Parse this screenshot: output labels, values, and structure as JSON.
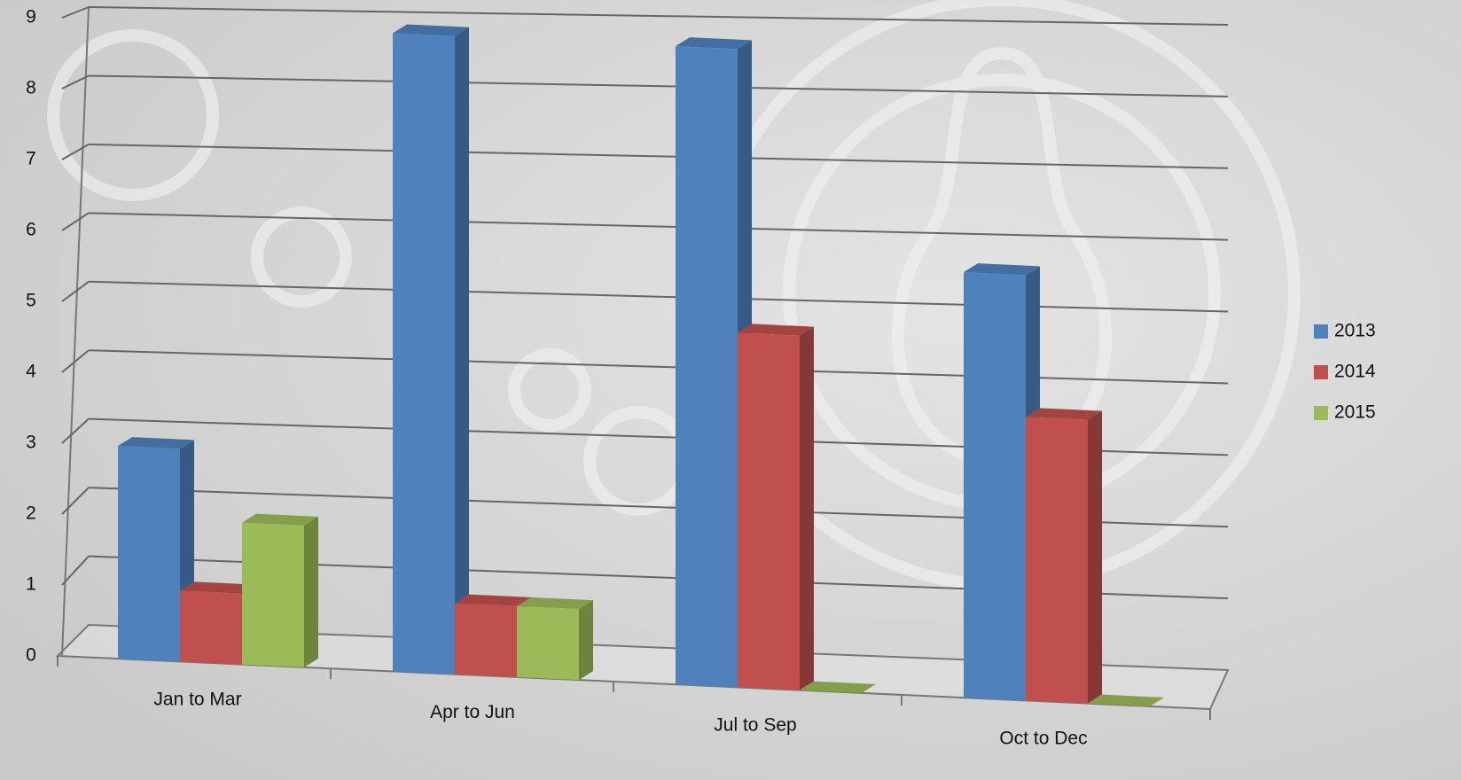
{
  "chart_data": {
    "type": "bar3d",
    "categories": [
      "Jan to Mar",
      "Apr to Jun",
      "Jul to Sep",
      "Oct to Dec"
    ],
    "series": [
      {
        "name": "2013",
        "color": "#4f81bd",
        "values": [
          3,
          9,
          9,
          6
        ]
      },
      {
        "name": "2014",
        "color": "#c0504d",
        "values": [
          1,
          1,
          5,
          4
        ]
      },
      {
        "name": "2015",
        "color": "#9bbb59",
        "values": [
          2,
          1,
          0,
          0
        ]
      }
    ],
    "ylim": [
      0,
      9
    ],
    "yticks": [
      0,
      1,
      2,
      3,
      4,
      5,
      6,
      7,
      8,
      9
    ],
    "grid": true,
    "legend": "right"
  }
}
